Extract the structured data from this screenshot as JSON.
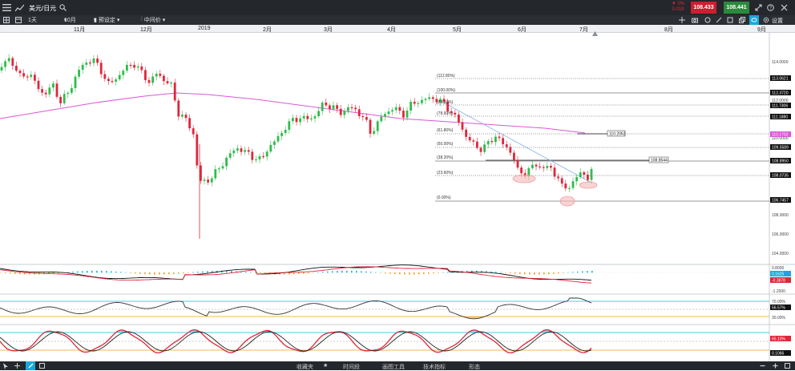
{
  "header": {
    "title": "美元/日元",
    "change_pct": "▼ 0%",
    "change_abs": "0.019",
    "sell_price": "108.433",
    "buy_price": "108.441"
  },
  "toolbar": {
    "period": "1天",
    "range": "10月",
    "preset": "预设定",
    "price_type": "中间价",
    "settings": "设置"
  },
  "time_axis": {
    "labels": [
      "11月",
      "12月",
      "2019",
      "2月",
      "3月",
      "4月",
      "5月",
      "6月",
      "7月",
      "8月",
      "9月"
    ]
  },
  "price_axis": {
    "ticks": [
      "114.0000",
      "112.0000",
      "110.0000",
      "108.0000",
      "106.0000",
      "104.0000"
    ],
    "levels": [
      "113.0621",
      "112.3720",
      "111.7306",
      "111.1880",
      "110.1702",
      "109.5589",
      "108.8950",
      "108.0735",
      "106.7457"
    ],
    "current_price": "108.8950"
  },
  "fibonacci": {
    "labels": [
      "(112.80%)",
      "(100.00%)",
      "(88.60%)",
      "(78.60%)",
      "(61.80%)",
      "(50.00%)",
      "(38.20%)",
      "(23.60%)",
      "(0.00%)"
    ],
    "callout_1": "110.2062",
    "callout_2": "108.8544"
  },
  "macd": {
    "ticks": [
      "0.8000",
      "-1.2000"
    ],
    "value_1": "0.1625",
    "value_2": "-0.3878"
  },
  "rsi": {
    "ticks": [
      "70.00%",
      "30.00%"
    ],
    "value": "56.57%"
  },
  "stoch": {
    "value_1": "65.10%",
    "value_2": "0.1066"
  },
  "bottom_bar": {
    "items": [
      "收藏夹",
      "时间段",
      "画图工具",
      "技术指标",
      "形态"
    ]
  },
  "colors": {
    "bull": "#2ebd4b",
    "bear": "#e0263a",
    "ma": "#d858d8",
    "header_bg": "#24272c",
    "accent": "#19a7e0"
  }
}
